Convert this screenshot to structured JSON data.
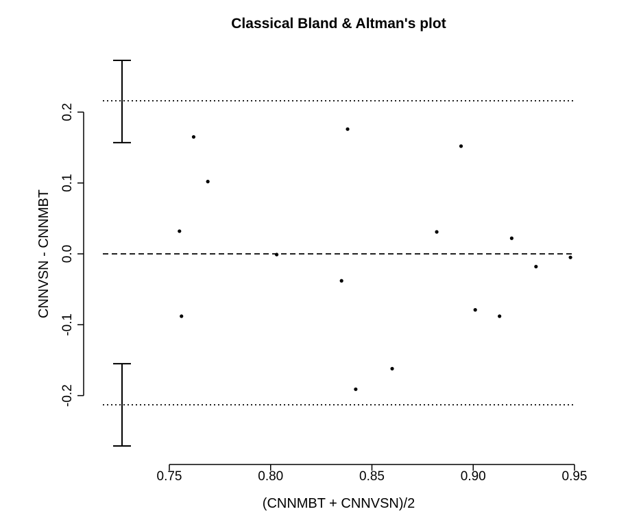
{
  "chart_data": {
    "type": "scatter",
    "title": "Classical Bland & Altman's plot",
    "xlabel": "(CNNMBT + CNNVSN)/2",
    "ylabel": "CNNVSN - CNNMBT",
    "xlim": [
      0.75,
      0.95
    ],
    "ylim": [
      -0.28,
      0.28
    ],
    "x_ticks": [
      0.75,
      0.8,
      0.85,
      0.9,
      0.95
    ],
    "x_tick_labels": [
      "0.75",
      "0.80",
      "0.85",
      "0.90",
      "0.95"
    ],
    "y_ticks": [
      -0.2,
      -0.1,
      0.0,
      0.1,
      0.2
    ],
    "y_tick_labels": [
      "-0.2",
      "-0.1",
      "0.0",
      "0.1",
      "0.2"
    ],
    "grid": false,
    "points": [
      {
        "x": 0.762,
        "y": 0.165
      },
      {
        "x": 0.769,
        "y": 0.102
      },
      {
        "x": 0.755,
        "y": 0.032
      },
      {
        "x": 0.756,
        "y": -0.088
      },
      {
        "x": 0.803,
        "y": -0.001
      },
      {
        "x": 0.835,
        "y": -0.038
      },
      {
        "x": 0.838,
        "y": 0.176
      },
      {
        "x": 0.842,
        "y": -0.191
      },
      {
        "x": 0.86,
        "y": -0.162
      },
      {
        "x": 0.882,
        "y": 0.031
      },
      {
        "x": 0.894,
        "y": 0.152
      },
      {
        "x": 0.901,
        "y": -0.079
      },
      {
        "x": 0.913,
        "y": -0.088
      },
      {
        "x": 0.919,
        "y": 0.022
      },
      {
        "x": 0.931,
        "y": -0.018
      },
      {
        "x": 0.948,
        "y": -0.005
      }
    ],
    "mean_line": 0.0,
    "limits_of_agreement": {
      "upper": 0.216,
      "lower": -0.213
    },
    "confidence_intervals": {
      "upper": [
        0.157,
        0.273
      ],
      "lower": [
        -0.271,
        -0.155
      ]
    }
  }
}
